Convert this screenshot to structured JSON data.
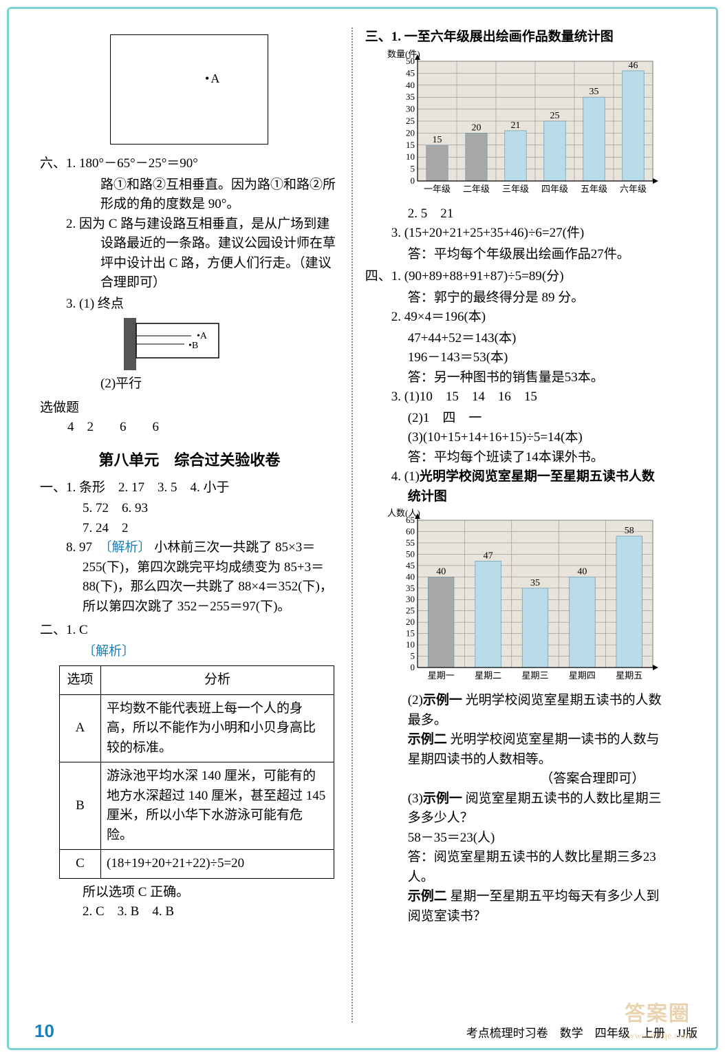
{
  "colors": {
    "border": "#7dd3d8",
    "text": "#000000",
    "accent": "#1a7fb8",
    "bar_fill": "#b8dce8",
    "bar_fill2": "#a8a8a8",
    "grid": "#7f7f7f",
    "chart_bg": "#e8e4dc"
  },
  "left": {
    "point_a": "A",
    "six": {
      "label": "六、",
      "q1": {
        "num": "1.",
        "line1": "180°－65°－25°＝90°",
        "line2": "路①和路②互相垂直。因为路①和路②所形成的角的度数是 90°。"
      },
      "q2": {
        "num": "2.",
        "text": "因为 C 路与建设路互相垂直，是从广场到建设路最近的一条路。建议公园设计师在草坪中设计出 C 路，方便人们行走。（建议合理即可）"
      },
      "q3": {
        "num": "3.",
        "p1_label": "(1)",
        "p1_text": "终点",
        "p2_label": "(2)",
        "p2_text": "平行"
      }
    },
    "optional": {
      "label": "选做题",
      "nums": "4　2　　6　　6"
    },
    "unit_title": "第八单元　综合过关验收卷",
    "yi": {
      "label": "一、",
      "line1": "1. 条形　2. 17　3. 5　4. 小于",
      "line2": "5. 72　6. 93",
      "line3": "7. 24　2",
      "q8_num": "8.",
      "q8_ans": "97",
      "q8_tag": "〔解析〕",
      "q8_text": "小林前三次一共跳了 85×3＝255(下)，第四次跳完平均成绩变为 85+3＝88(下)，那么四次一共跳了 88×4＝352(下)，所以第四次跳了 352－255＝97(下)。"
    },
    "er": {
      "label": "二、",
      "q1": "1. C",
      "tag": "〔解析〕",
      "table": {
        "head_opt": "选项",
        "head_ana": "分析",
        "a": "A",
        "a_text": "平均数不能代表班上每一个人的身高，所以不能作为小明和小贝身高比较的标准。",
        "b": "B",
        "b_text": "游泳池平均水深 140 厘米，可能有的地方水深超过 140 厘米，甚至超过 145 厘米，所以小华下水游泳可能有危险。",
        "c": "C",
        "c_text": "(18+19+20+21+22)÷5=20"
      },
      "conclusion": "所以选项 C 正确。",
      "line_rest": "2. C　3. B　4. B"
    }
  },
  "right": {
    "san": {
      "label": "三、",
      "q1_num": "1.",
      "chart1": {
        "title": "一至六年级展出绘画作品数量统计图",
        "ylabel": "数量(件)",
        "categories": [
          "一年级",
          "二年级",
          "三年级",
          "四年级",
          "五年级",
          "六年级"
        ],
        "values": [
          15,
          20,
          21,
          25,
          35,
          46
        ],
        "value_labels": [
          "15",
          "20",
          "21",
          "25",
          "35",
          "46"
        ],
        "ylim": [
          0,
          50
        ],
        "ytick_step": 5,
        "bar_color": "#b8dce8",
        "bar2_color": "#a8a8a8",
        "grid_color": "#7f7f7f",
        "bg": "#e8e4dc",
        "title_fontsize": 19,
        "label_fontsize": 13
      },
      "q2": "2. 5　21",
      "q3_line1": "3. (15+20+21+25+35+46)÷6=27(件)",
      "q3_line2": "答：平均每个年级展出绘画作品27件。"
    },
    "si": {
      "label": "四、",
      "q1_line1": "1. (90+89+88+91+87)÷5=89(分)",
      "q1_line2": "答：郭宁的最终得分是 89 分。",
      "q2_l1": "2. 49×4＝196(本)",
      "q2_l2": "47+44+52＝143(本)",
      "q2_l3": "196－143＝53(本)",
      "q2_l4": "答：另一种图书的销售量是53本。",
      "q3_l1": "3. (1)10　15　14　16　15",
      "q3_l2": "(2)1　四　一",
      "q3_l3": "(3)(10+15+14+16+15)÷5=14(本)",
      "q3_l4": "答：平均每个班读了14本课外书。",
      "q4_num": "4.",
      "q4_p1": "(1)",
      "chart2": {
        "title": "光明学校阅览室星期一至星期五读书人数统计图",
        "ylabel": "人数(人)",
        "categories": [
          "星期一",
          "星期二",
          "星期三",
          "星期四",
          "星期五"
        ],
        "values": [
          40,
          47,
          35,
          40,
          58
        ],
        "value_labels": [
          "40",
          "47",
          "35",
          "40",
          "58"
        ],
        "ylim": [
          0,
          65
        ],
        "ytick_step": 5,
        "bar_color": "#b8dce8",
        "bar1_color": "#a8a8a8",
        "grid_color": "#7f7f7f",
        "bg": "#e8e4dc"
      },
      "q4_p2a": "(2)",
      "q4_p2a_tag": "示例一",
      "q4_p2a_text": "光明学校阅览室星期五读书的人数最多。",
      "q4_p2b_tag": "示例二",
      "q4_p2b_text": "光明学校阅览室星期一读书的人数与星期四读书的人数相等。",
      "q4_p2_note": "（答案合理即可）",
      "q4_p3a": "(3)",
      "q4_p3a_tag": "示例一",
      "q4_p3a_text": "阅览室星期五读书的人数比星期三多多少人？",
      "q4_p3_calc": "58－35＝23(人)",
      "q4_p3_ans": "答：阅览室星期五读书的人数比星期三多23人。",
      "q4_p3b_tag": "示例二",
      "q4_p3b_text": "星期一至星期五平均每天有多少人到阅览室读书？"
    }
  },
  "footer": {
    "page": "10",
    "text": "考点梳理时习卷　数学　四年级　上册　JJ版"
  },
  "watermark": "答案圈",
  "watermark_sub": "www.mxqe.com"
}
